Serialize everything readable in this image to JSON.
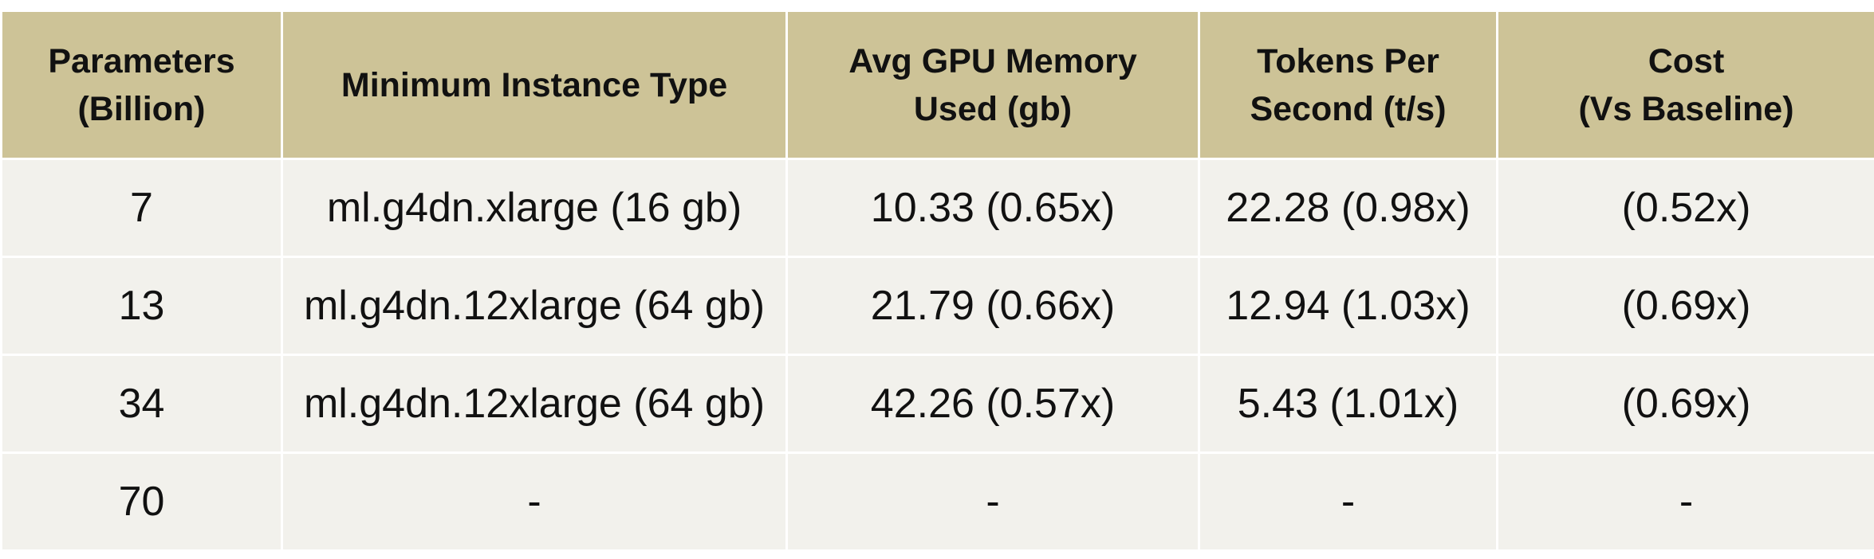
{
  "table": {
    "header": [
      "Parameters\n(Billion)",
      "Minimum Instance Type",
      "Avg GPU Memory\nUsed (gb)",
      "Tokens Per\nSecond (t/s)",
      "Cost\n(Vs Baseline)"
    ],
    "rows": [
      [
        "7",
        "ml.g4dn.xlarge (16 gb)",
        "10.33 (0.65x)",
        "22.28 (0.98x)",
        "(0.52x)"
      ],
      [
        "13",
        "ml.g4dn.12xlarge (64 gb)",
        "21.79 (0.66x)",
        "12.94 (1.03x)",
        "(0.69x)"
      ],
      [
        "34",
        "ml.g4dn.12xlarge (64 gb)",
        "42.26 (0.57x)",
        "5.43 (1.01x)",
        "(0.69x)"
      ],
      [
        "70",
        "-",
        "-",
        "-",
        "-"
      ]
    ]
  }
}
